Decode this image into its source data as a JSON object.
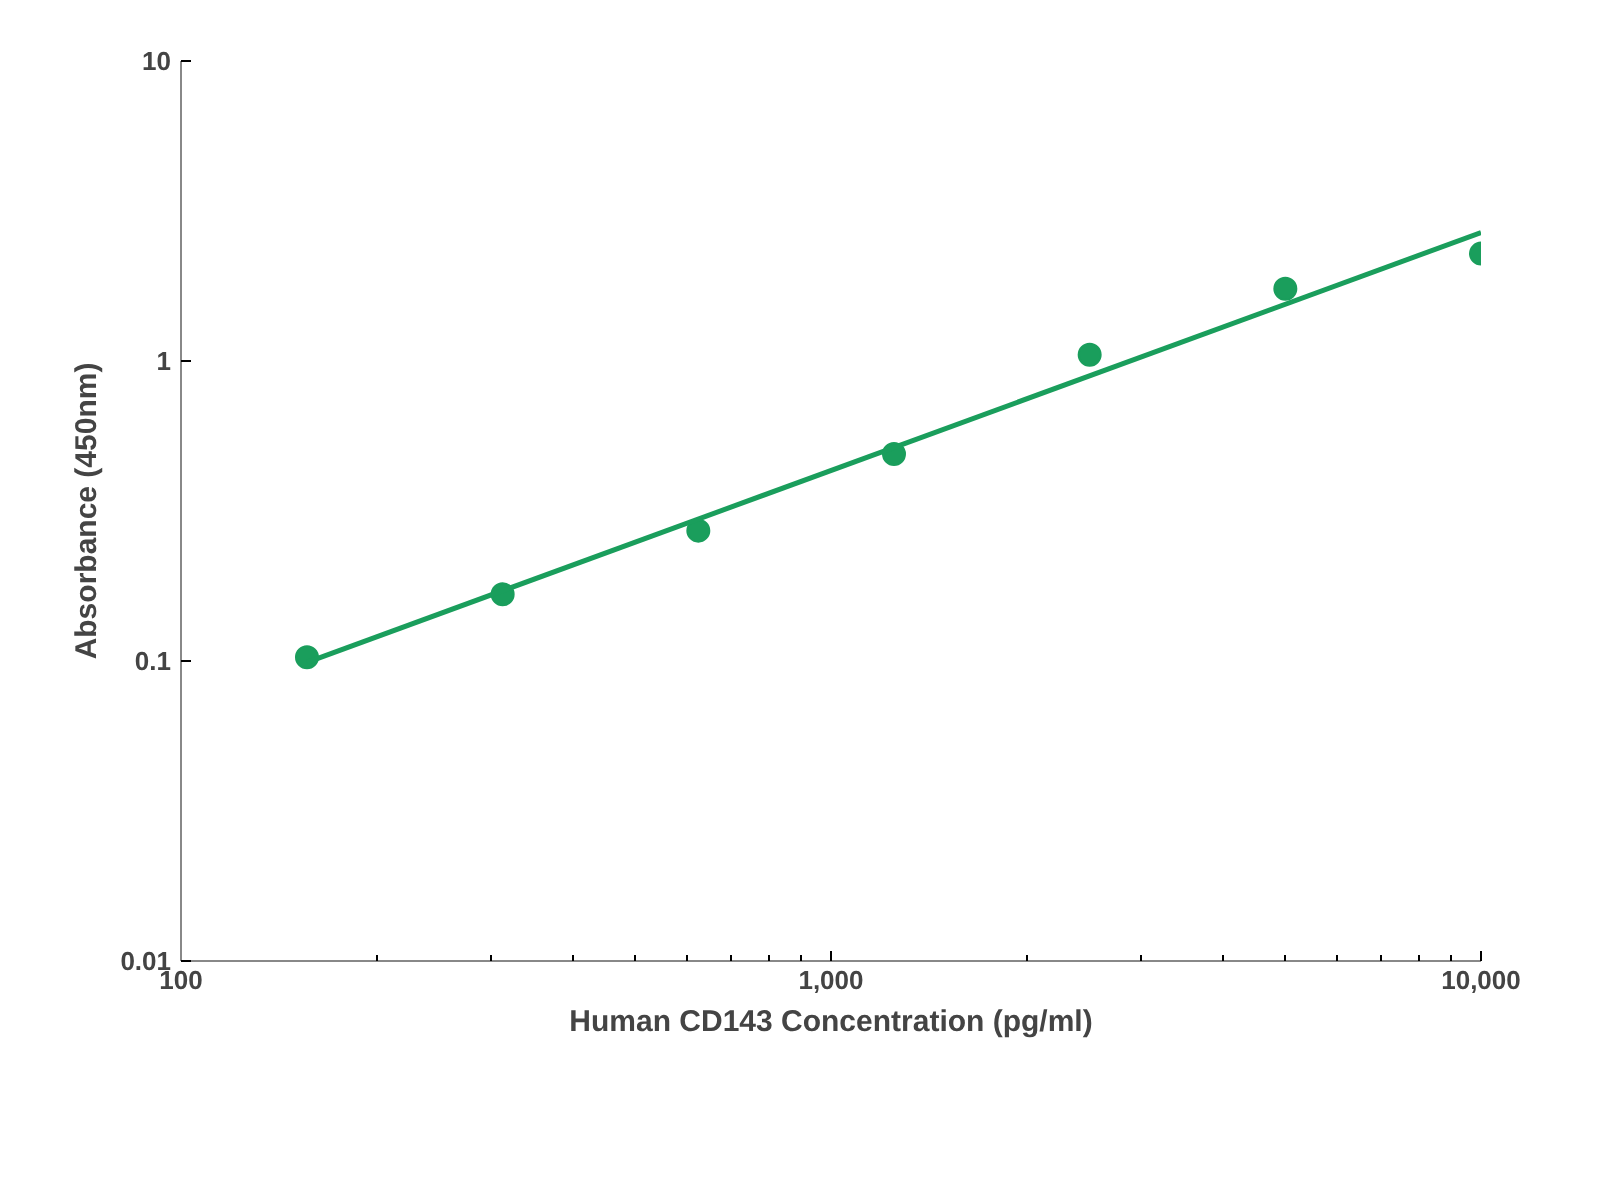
{
  "chart_data": {
    "type": "scatter",
    "xlabel": "Human CD143 Concentration (pg/ml)",
    "ylabel": "Absorbance (450nm)",
    "log": "xy",
    "grid": false,
    "xlim": [
      100,
      10000
    ],
    "ylim": [
      0.01,
      10
    ],
    "xticks": [
      100,
      {
        "value": 1000,
        "label": "1,000"
      },
      {
        "value": 10000,
        "label": "10,000"
      }
    ],
    "yticks": [
      0.01,
      0.1,
      1,
      10
    ],
    "series": [
      {
        "marker": "circle",
        "color": "#1a9e5c",
        "x": [
          156.25,
          312.5,
          625,
          1250,
          2500,
          5000,
          10000
        ],
        "values": [
          0.103,
          0.167,
          0.272,
          0.49,
          1.05,
          1.74,
          2.28
        ]
      },
      {
        "type": "line",
        "marker": "none",
        "line_style": "solid",
        "color": "#1a9e5c",
        "x": [
          156.25,
          10000
        ],
        "values": [
          0.099,
          2.68
        ]
      }
    ]
  }
}
